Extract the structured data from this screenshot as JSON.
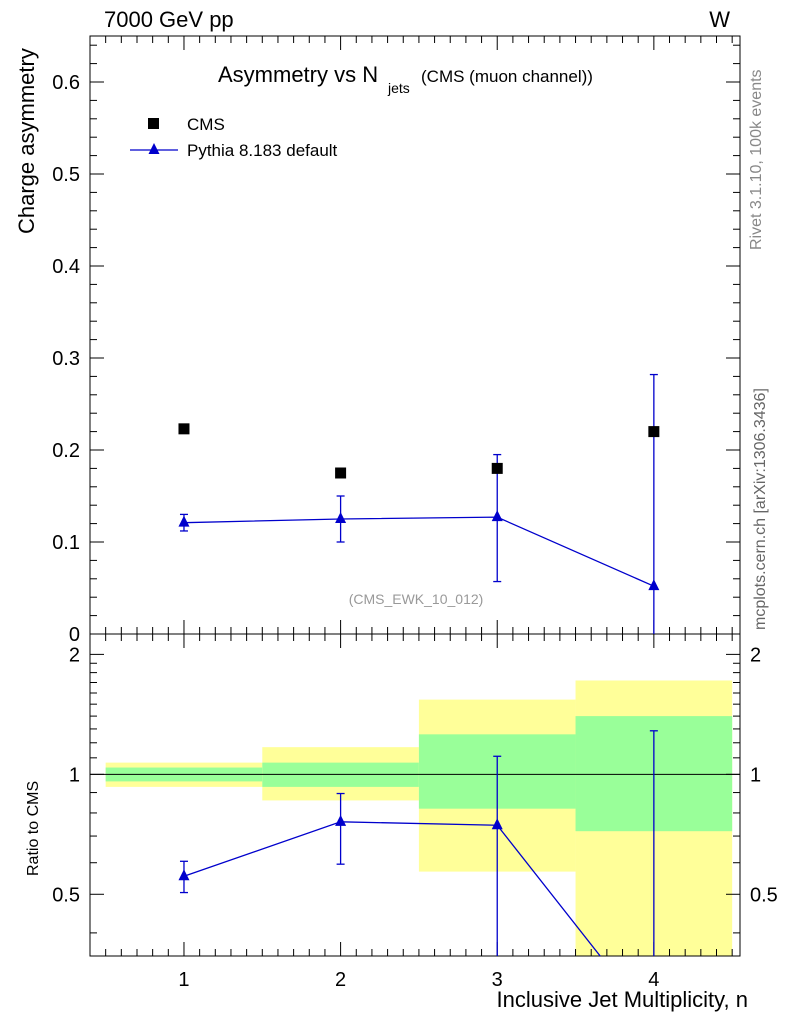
{
  "header": {
    "energy_label": "7000 GeV pp",
    "process_label": "W"
  },
  "side_labels": {
    "rivet": "Rivet 3.1.10,  100k events",
    "mcplots": "mcplots.cern.ch [arXiv:1306.3436]"
  },
  "chart_data": {
    "type": "scatter",
    "title": "Asymmetry vs N",
    "title_subscript": "jets",
    "title_suffix": "(CMS (muon channel))",
    "analysis_label": "(CMS_EWK_10_012)",
    "xlabel": "Inclusive Jet Multiplicity, n",
    "ylabel": "Charge asymmetry",
    "ratio_ylabel": "Ratio to CMS",
    "xlim": [
      0.4,
      4.55
    ],
    "ylim": [
      0,
      0.65
    ],
    "ratio_ylim": [
      0.35,
      2.25
    ],
    "x_ticks": [
      "1",
      "2",
      "3",
      "4"
    ],
    "y_ticks": [
      "0",
      "0.1",
      "0.2",
      "0.3",
      "0.4",
      "0.5",
      "0.6"
    ],
    "ratio_y_ticks": [
      "0.5",
      "1",
      "2"
    ],
    "legend": {
      "placement": "top-left",
      "entries": [
        "CMS",
        "Pythia 8.183 default"
      ]
    },
    "series": [
      {
        "name": "CMS",
        "marker": "square",
        "color": "#000000",
        "x": [
          1,
          2,
          3,
          4
        ],
        "y": [
          0.223,
          0.175,
          0.18,
          0.22
        ]
      },
      {
        "name": "Pythia 8.183 default",
        "marker": "triangle",
        "color": "#0000cc",
        "x": [
          1,
          2,
          3,
          4
        ],
        "y": [
          0.121,
          0.125,
          0.127,
          0.052
        ],
        "err_low": [
          0.009,
          0.025,
          0.07,
          0.08
        ],
        "err_high": [
          0.009,
          0.025,
          0.068,
          0.23
        ]
      }
    ],
    "ratio": {
      "x": [
        1,
        2,
        3,
        4
      ],
      "y": [
        0.555,
        0.76,
        0.745,
        0.236
      ],
      "err_low": [
        0.05,
        0.165,
        0.41,
        0.4
      ],
      "err_high": [
        0.05,
        0.135,
        0.365,
        1.05
      ],
      "bins": [
        [
          0.5,
          1.5
        ],
        [
          1.5,
          2.5
        ],
        [
          2.5,
          3.5
        ],
        [
          3.5,
          4.5
        ]
      ],
      "band_inner": [
        [
          0.96,
          1.04
        ],
        [
          0.93,
          1.07
        ],
        [
          0.82,
          1.26
        ],
        [
          0.72,
          1.4
        ]
      ],
      "band_outer": [
        [
          0.93,
          1.07
        ],
        [
          0.86,
          1.17
        ],
        [
          0.57,
          1.54
        ],
        [
          0.35,
          1.72
        ]
      ],
      "band_inner_color": "#99ff99",
      "band_outer_color": "#ffff99"
    }
  }
}
